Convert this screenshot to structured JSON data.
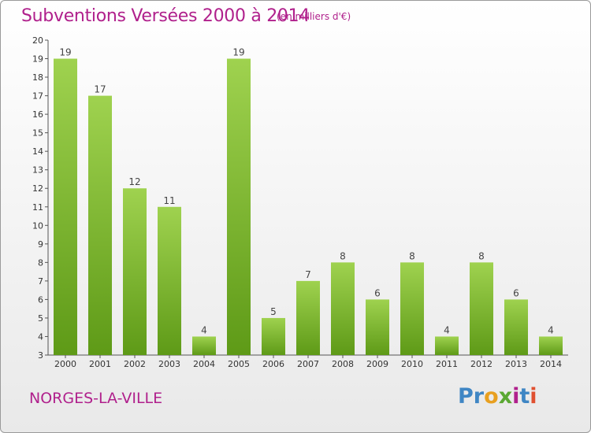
{
  "header": {
    "title": "Subventions Versées 2000 à 2014",
    "subtitle": "(en milliers d'€)"
  },
  "footer": {
    "commune": "NORGES-LA-VILLE",
    "logo_letters": [
      "P",
      "r",
      "o",
      "x",
      "i",
      "t",
      "i"
    ],
    "logo_colors": [
      "#3f86c4",
      "#3f86c4",
      "#e8a020",
      "#5aa832",
      "#b0208c",
      "#3f86c4",
      "#e05030"
    ]
  },
  "colors": {
    "title": "#b0208c",
    "bar_light": "#9fd24f",
    "bar_dark": "#5e9a17"
  },
  "chart_data": {
    "type": "bar",
    "title": "Subventions Versées 2000 à 2014",
    "categories": [
      "2000",
      "2001",
      "2002",
      "2003",
      "2004",
      "2005",
      "2006",
      "2007",
      "2008",
      "2009",
      "2010",
      "2011",
      "2012",
      "2013",
      "2014"
    ],
    "values": [
      19,
      17,
      12,
      11,
      4,
      19,
      5,
      7,
      8,
      6,
      8,
      4,
      8,
      6,
      4
    ],
    "ylim": [
      3,
      20
    ],
    "yticks": [
      3,
      4,
      5,
      6,
      7,
      8,
      9,
      10,
      11,
      12,
      13,
      14,
      15,
      16,
      17,
      18,
      19,
      20
    ],
    "grid": false,
    "data_labels": true
  }
}
